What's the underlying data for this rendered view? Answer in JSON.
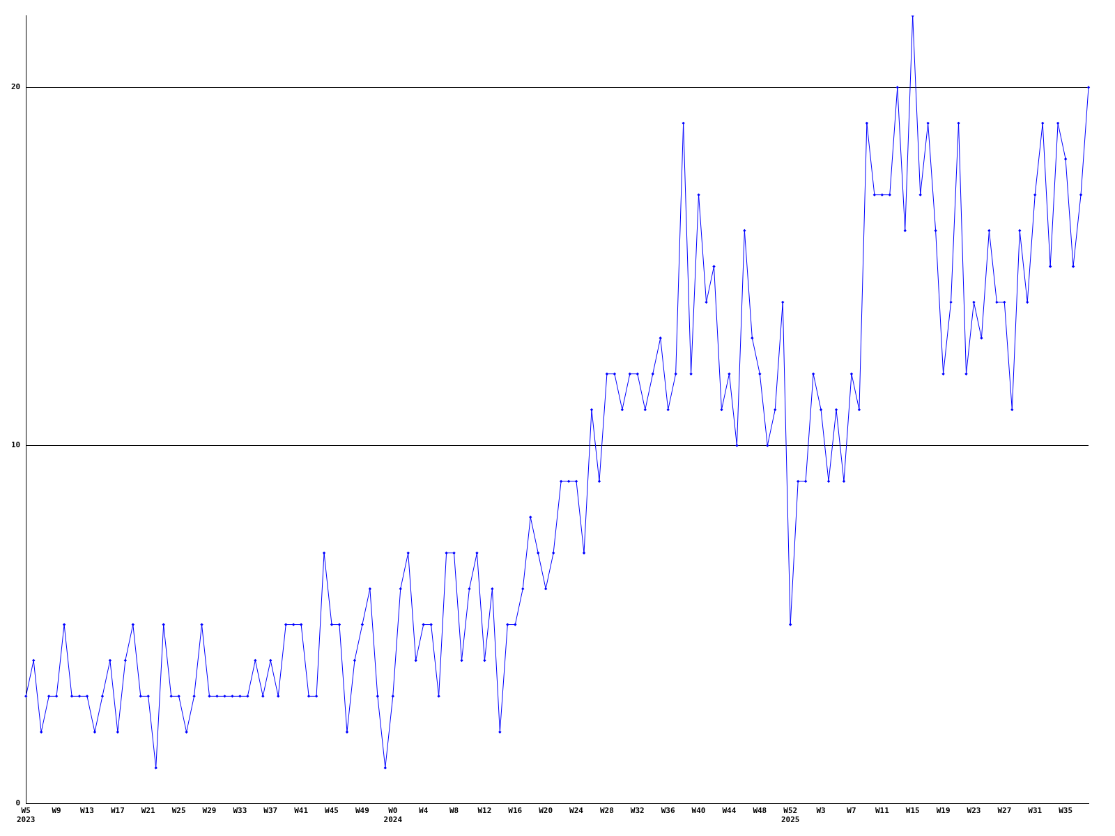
{
  "chart_data": {
    "type": "line",
    "categories": [
      "W5\n2023",
      null,
      null,
      null,
      "W9",
      null,
      null,
      null,
      "W13",
      null,
      null,
      null,
      "W17",
      null,
      null,
      null,
      "W21",
      null,
      null,
      null,
      "W25",
      null,
      null,
      null,
      "W29",
      null,
      null,
      null,
      "W33",
      null,
      null,
      null,
      "W37",
      null,
      null,
      null,
      "W41",
      null,
      null,
      null,
      "W45",
      null,
      null,
      null,
      "W49",
      null,
      null,
      null,
      "W0\n2024",
      null,
      null,
      null,
      "W4",
      null,
      null,
      null,
      "W8",
      null,
      null,
      null,
      "W12",
      null,
      null,
      null,
      "W16",
      null,
      null,
      null,
      "W20",
      null,
      null,
      null,
      "W24",
      null,
      null,
      null,
      "W28",
      null,
      null,
      null,
      "W32",
      null,
      null,
      null,
      "W36",
      null,
      null,
      null,
      "W40",
      null,
      null,
      null,
      "W44",
      null,
      null,
      null,
      "W48",
      null,
      null,
      null,
      "W52\n2025",
      null,
      null,
      null,
      "W3",
      null,
      null,
      null,
      "W7",
      null,
      null,
      null,
      "W11",
      null,
      null,
      null,
      "W15",
      null,
      null,
      null,
      "W19",
      null,
      null,
      null,
      "W23",
      null,
      null,
      null,
      "W27",
      null,
      null,
      null,
      "W31",
      null,
      null,
      null,
      "W35",
      null,
      null,
      null
    ],
    "series": [
      {
        "color": "#0000ff",
        "values": [
          3,
          4,
          2,
          3,
          3,
          5,
          3,
          3,
          3,
          2,
          3,
          4,
          2,
          4,
          5,
          3,
          3,
          1,
          5,
          3,
          3,
          2,
          3,
          5,
          3,
          3,
          3,
          3,
          3,
          3,
          4,
          3,
          4,
          3,
          5,
          5,
          5,
          3,
          3,
          7,
          5,
          5,
          2,
          4,
          5,
          6,
          3,
          1,
          3,
          6,
          7,
          4,
          5,
          5,
          3,
          7,
          7,
          4,
          6,
          7,
          4,
          6,
          2,
          5,
          5,
          6,
          8,
          7,
          6,
          7,
          9,
          9,
          9,
          7,
          11,
          9,
          12,
          12,
          11,
          12,
          12,
          11,
          12,
          13,
          11,
          12,
          19,
          12,
          17,
          14,
          15,
          11,
          12,
          10,
          16,
          13,
          12,
          10,
          11,
          14,
          5,
          9,
          9,
          12,
          11,
          9,
          11,
          9,
          12,
          11,
          19,
          17,
          17,
          17,
          20,
          16,
          22,
          17,
          19,
          16,
          12,
          14,
          19,
          12,
          14,
          13,
          16,
          14,
          14,
          11,
          16,
          14,
          17,
          19,
          15,
          19,
          18,
          15,
          17,
          20
        ]
      }
    ],
    "ylim": [
      0,
      22
    ],
    "yticks": [
      0,
      10,
      20
    ],
    "grid": "y",
    "legend": false,
    "marker": "diamond",
    "line_style": "solid"
  }
}
